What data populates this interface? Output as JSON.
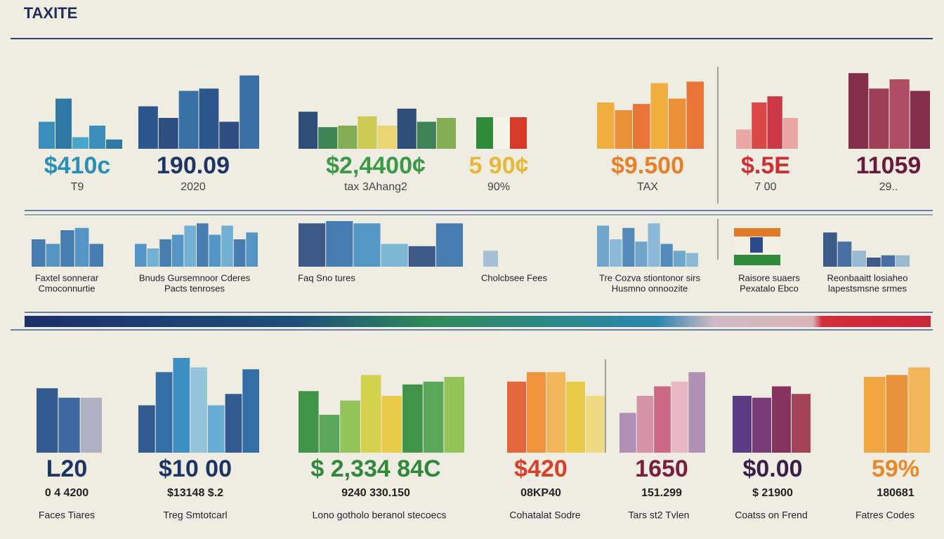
{
  "title": "TAXITE",
  "top_panels": [
    {
      "value": "$410c",
      "sub": "T9"
    },
    {
      "value": "190.09",
      "sub": "2020"
    },
    {
      "value": "$2,4400¢",
      "sub": "tax 3Ahang2"
    },
    {
      "value": "5 90¢",
      "sub": "90%"
    },
    {
      "value": "$9.500",
      "sub": "TAX"
    },
    {
      "value": "$.5E",
      "sub": "7 00"
    },
    {
      "value": "11059",
      "sub": "29.."
    }
  ],
  "middle_panels": [
    {
      "label": [
        "Faxtel sonnerar",
        "Cmoconnurtie"
      ]
    },
    {
      "label": [
        "Bnuds Gursemnoor Cderes",
        "Pacts tenroses"
      ]
    },
    {
      "label": [
        "Faq Sno tures"
      ]
    },
    {
      "label": [
        "Cholcbsee Fees"
      ]
    },
    {
      "label": [
        "Tre Cozva stiontonor sirs",
        "Husmno onnoozite"
      ]
    },
    {
      "label": [
        "Raisore suaers",
        "Pexatalo Ebco"
      ]
    },
    {
      "label": [
        "Reonbaaitt losiaheo",
        "lapestsmsne srmes"
      ]
    }
  ],
  "bottom_panels": [
    {
      "value": "L20",
      "sub": "0 4 4200",
      "label": "Faces Tiares"
    },
    {
      "value": "$10 00",
      "sub": "$13148   $.2",
      "label": "Treg Smtotcarl"
    },
    {
      "value": "$ 2,334 84C",
      "sub": "9240    330.150",
      "label": "Lono gotholo beranol stecoecs"
    },
    {
      "value": "$420",
      "sub": "08KP40",
      "label": "Cohatalat Sodre"
    },
    {
      "value": "1650",
      "sub": "151.299",
      "label": "Tars st2 Tvlen"
    },
    {
      "value": "$0.00",
      "sub": "$ 21900",
      "label": "Coatss on Frend"
    },
    {
      "value": "59%",
      "sub": "180681",
      "label": "Fatres Codes"
    }
  ]
}
